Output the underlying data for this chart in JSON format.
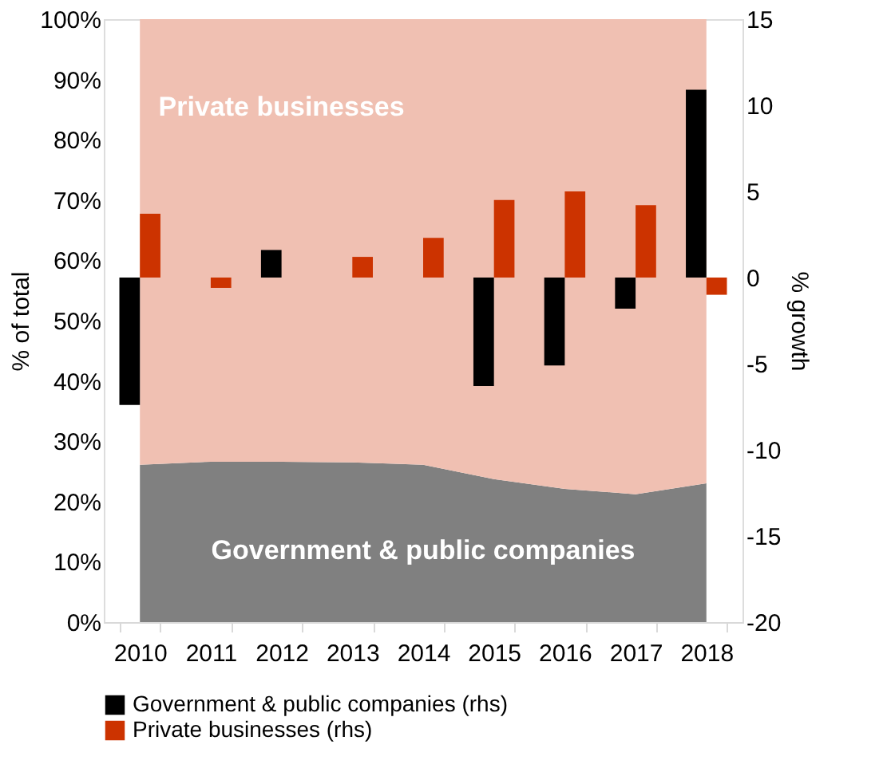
{
  "chart_data": {
    "type": "bar",
    "categories": [
      "2010",
      "2011",
      "2012",
      "2013",
      "2014",
      "2015",
      "2016",
      "2017",
      "2018"
    ],
    "ylabel": "% of total",
    "y2label": "% growth",
    "ylim": [
      0,
      100
    ],
    "yticks": [
      {
        "value": 0,
        "label": "0%"
      },
      {
        "value": 10,
        "label": "10%"
      },
      {
        "value": 20,
        "label": "20%"
      },
      {
        "value": 30,
        "label": "30%"
      },
      {
        "value": 40,
        "label": "40%"
      },
      {
        "value": 50,
        "label": "50%"
      },
      {
        "value": 60,
        "label": "60%"
      },
      {
        "value": 70,
        "label": "70%"
      },
      {
        "value": 80,
        "label": "80%"
      },
      {
        "value": 90,
        "label": "90%"
      },
      {
        "value": 100,
        "label": "100%"
      }
    ],
    "y2lim": [
      -20,
      15
    ],
    "y2ticks": [
      -20,
      -15,
      -10,
      -5,
      0,
      5,
      10,
      15
    ],
    "stacked": true,
    "legend": "bottom",
    "grid": false,
    "series": [
      {
        "name": "Government & public companies",
        "type": "area",
        "color": "#808080",
        "values": [
          26.1,
          26.6,
          26.6,
          26.5,
          26.1,
          23.7,
          22.1,
          21.2,
          23.0
        ]
      },
      {
        "name": "Private businesses",
        "type": "area",
        "color": "#f0c0b2",
        "values": [
          73.9,
          73.4,
          73.4,
          73.5,
          73.9,
          76.3,
          77.9,
          78.8,
          77.0
        ]
      },
      {
        "name": "Government & public companies (rhs)",
        "axis": "y2",
        "color": "#000000",
        "values": [
          -7.4,
          null,
          1.6,
          null,
          null,
          -6.3,
          -5.1,
          -1.8,
          10.9
        ]
      },
      {
        "name": "Private businesses (rhs)",
        "axis": "y2",
        "color": "#cc3300",
        "values": [
          3.7,
          -0.6,
          null,
          1.2,
          2.3,
          4.5,
          5.0,
          4.2,
          -1.0
        ]
      }
    ]
  }
}
